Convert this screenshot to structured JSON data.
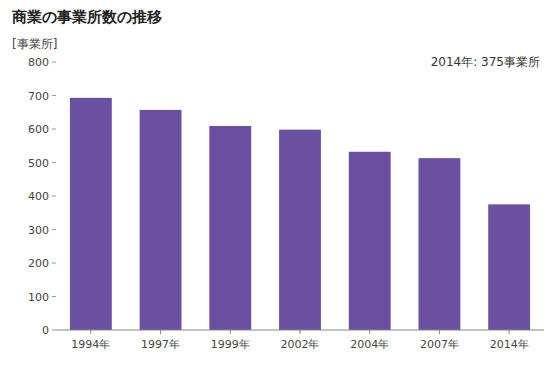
{
  "chart_data": {
    "type": "bar",
    "title": "商業の事業所数の推移",
    "ylabel": "[事業所]",
    "annotation": "2014年: 375事業所",
    "categories": [
      "1994年",
      "1997年",
      "1999年",
      "2002年",
      "2004年",
      "2007年",
      "2014年"
    ],
    "values": [
      693,
      657,
      609,
      598,
      532,
      513,
      375
    ],
    "color": "#6b4fa0",
    "ylim": [
      0,
      800
    ],
    "yticks": [
      0,
      100,
      200,
      300,
      400,
      500,
      600,
      700,
      800
    ],
    "grid": false
  }
}
